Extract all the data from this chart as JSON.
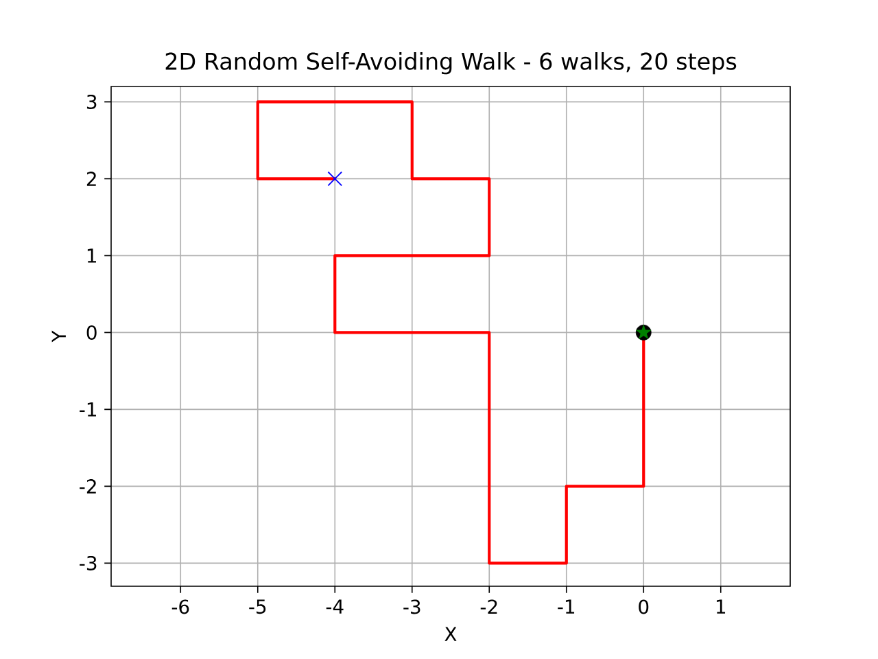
{
  "chart_data": {
    "type": "line",
    "title": "2D Random Self-Avoiding Walk - 6 walks, 20 steps",
    "xlabel": "X",
    "ylabel": "Y",
    "grid": true,
    "line_style": "solid",
    "xlim": [
      -6.9,
      1.9
    ],
    "ylim": [
      -3.3,
      3.2
    ],
    "xticks": [
      -6,
      -5,
      -4,
      -3,
      -2,
      -1,
      0,
      1
    ],
    "yticks": [
      -3,
      -2,
      -1,
      0,
      1,
      2,
      3
    ],
    "series": [
      {
        "type": "scatter",
        "marker": "circle",
        "color": "#000000",
        "x": [
          0
        ],
        "values": [
          0
        ]
      },
      {
        "marker": "none",
        "color": "#ff0000",
        "x": [
          0,
          0,
          -1,
          -1,
          -2,
          -2,
          -4,
          -4,
          -2,
          -2,
          -3,
          -3,
          -5,
          -5,
          -4
        ],
        "values": [
          0,
          -2,
          -2,
          -3,
          -3,
          0,
          0,
          1,
          1,
          2,
          2,
          3,
          3,
          2,
          2
        ]
      },
      {
        "type": "scatter",
        "marker": "star",
        "color": "#008000",
        "x": [
          0
        ],
        "values": [
          0
        ]
      },
      {
        "type": "scatter",
        "marker": "cross",
        "color": "#0000ff",
        "x": [
          -4
        ],
        "values": [
          2
        ]
      }
    ]
  }
}
